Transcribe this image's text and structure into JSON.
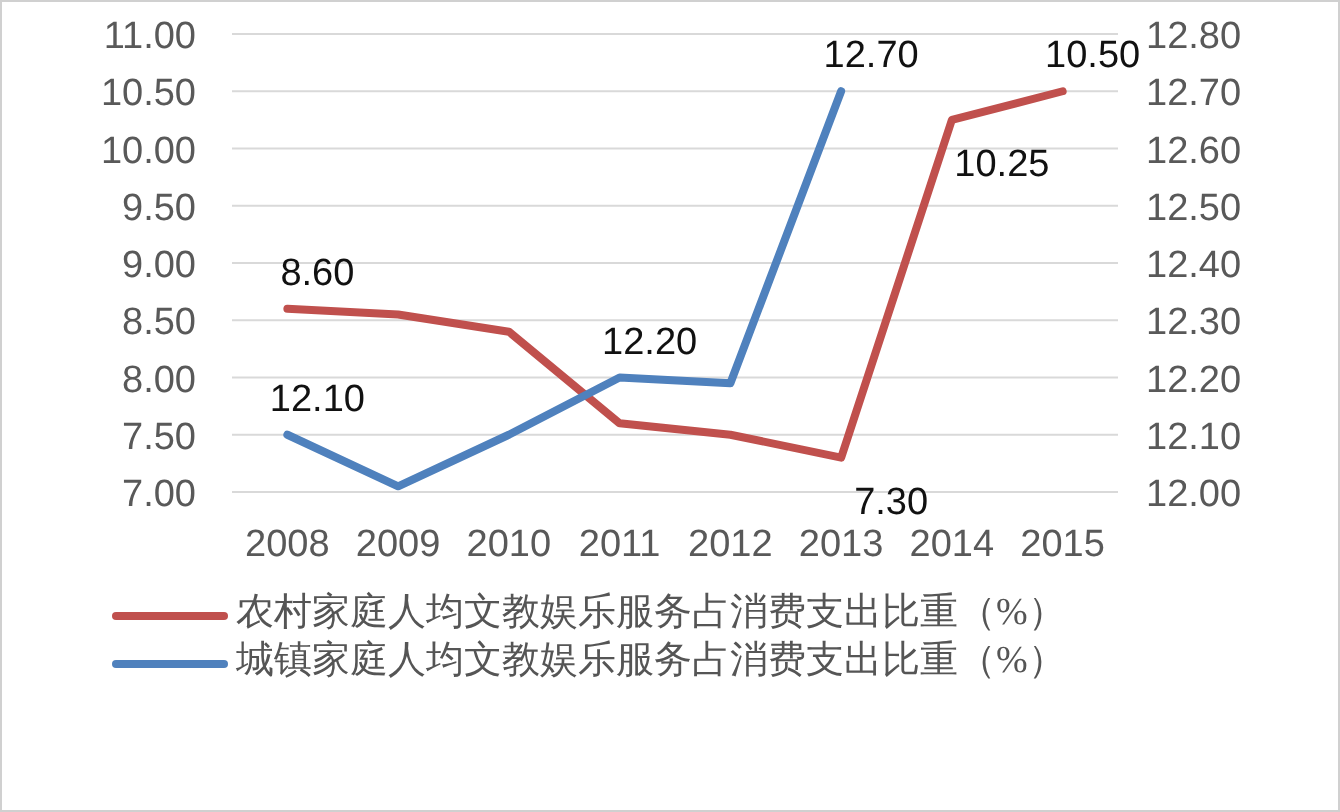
{
  "chart_data": {
    "type": "line",
    "categories": [
      "2008",
      "2009",
      "2010",
      "2011",
      "2012",
      "2013",
      "2014",
      "2015"
    ],
    "series": [
      {
        "name": "农村家庭人均文教娱乐服务占消费支出比重（%）",
        "color": "#c0504d",
        "values": [
          8.6,
          8.55,
          8.4,
          7.6,
          7.5,
          7.3,
          10.25,
          10.5
        ],
        "value_labels": [
          "8.60",
          null,
          null,
          null,
          null,
          "7.30",
          "10.25",
          "10.50"
        ]
      },
      {
        "name": "城镇家庭人均文教娱乐服务占消费支出比重（%）",
        "color": "#4f81bd",
        "axis": "y2",
        "values": [
          12.1,
          12.01,
          12.1,
          12.2,
          12.19,
          12.7,
          null,
          null
        ],
        "value_labels": [
          "12.10",
          null,
          null,
          "12.20",
          null,
          "12.70",
          null,
          null
        ]
      }
    ],
    "ylim": [
      7,
      11
    ],
    "yticks": [
      {
        "value": 7,
        "label": "7.00"
      },
      {
        "value": 7.5,
        "label": "7.50"
      },
      {
        "value": 8,
        "label": "8.00"
      },
      {
        "value": 8.5,
        "label": "8.50"
      },
      {
        "value": 9,
        "label": "9.00"
      },
      {
        "value": 9.5,
        "label": "9.50"
      },
      {
        "value": 10,
        "label": "10.00"
      },
      {
        "value": 10.5,
        "label": "10.50"
      },
      {
        "value": 11,
        "label": "11.00"
      }
    ],
    "y2lim": [
      12,
      12.8
    ],
    "y2ticks": [
      {
        "value": 12,
        "label": "12.00"
      },
      {
        "value": 12.1,
        "label": "12.10"
      },
      {
        "value": 12.2,
        "label": "12.20"
      },
      {
        "value": 12.3,
        "label": "12.30"
      },
      {
        "value": 12.4,
        "label": "12.40"
      },
      {
        "value": 12.5,
        "label": "12.50"
      },
      {
        "value": 12.6,
        "label": "12.60"
      },
      {
        "value": 12.7,
        "label": "12.70"
      },
      {
        "value": 12.8,
        "label": "12.80"
      }
    ],
    "grid": "y",
    "legend": "bottom",
    "marker": "none",
    "line_style": "solid"
  }
}
